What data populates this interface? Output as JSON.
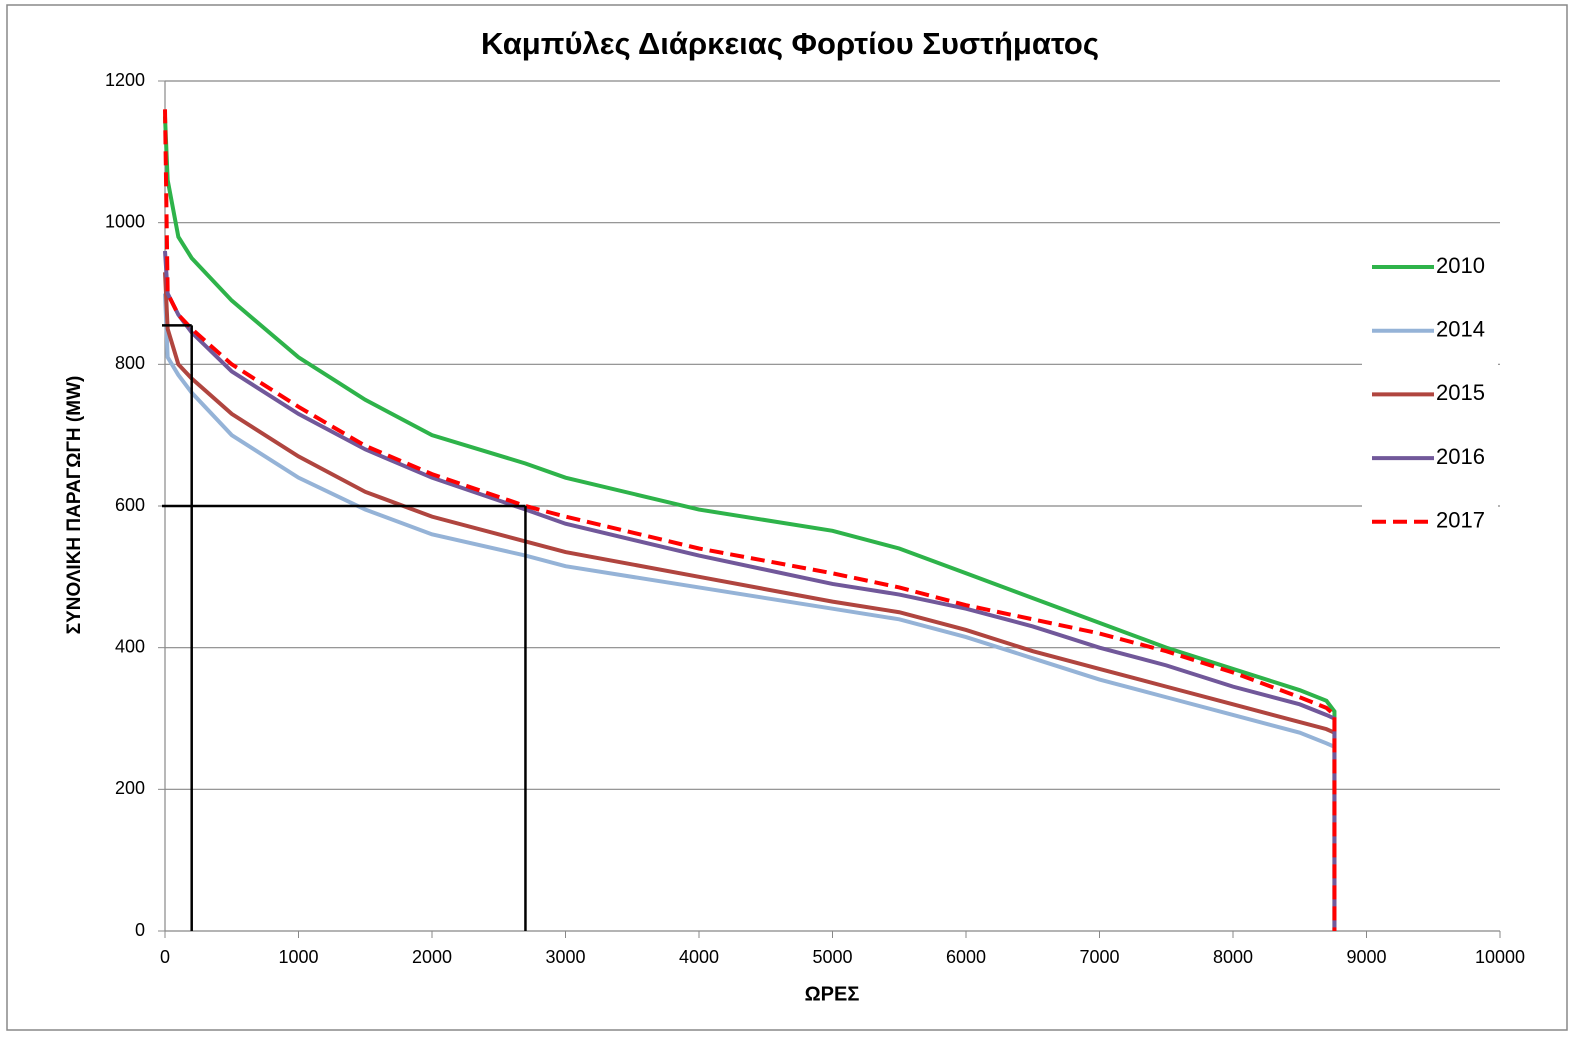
{
  "chart_data": {
    "type": "line",
    "title": "Καμπύλες Διάρκειας Φορτίου Συστήματος",
    "xlabel": "ΩΡΕΣ",
    "ylabel": "ΣΥΝΟΛΙΚΗ ΠΑΡΑΓΩΓΗ (MW)",
    "x": [
      0,
      20,
      100,
      200,
      500,
      1000,
      1500,
      2000,
      2700,
      3000,
      4000,
      5000,
      5500,
      6000,
      6500,
      7000,
      7500,
      8000,
      8500,
      8700,
      8760,
      8760
    ],
    "series": [
      {
        "name": "2010",
        "color": "#2eb34a",
        "style": "solid",
        "values": [
          1150,
          1060,
          980,
          950,
          890,
          810,
          750,
          700,
          660,
          640,
          595,
          565,
          540,
          505,
          470,
          435,
          400,
          370,
          340,
          325,
          310,
          0
        ]
      },
      {
        "name": "2014",
        "color": "#95b3d7",
        "style": "solid",
        "values": [
          900,
          810,
          785,
          760,
          700,
          640,
          595,
          560,
          530,
          515,
          485,
          455,
          440,
          415,
          385,
          355,
          330,
          305,
          280,
          265,
          260,
          0
        ]
      },
      {
        "name": "2015",
        "color": "#b0453f",
        "style": "solid",
        "values": [
          930,
          850,
          800,
          780,
          730,
          670,
          620,
          585,
          550,
          535,
          500,
          465,
          450,
          425,
          395,
          370,
          345,
          320,
          295,
          285,
          280,
          0
        ]
      },
      {
        "name": "2016",
        "color": "#71589a",
        "style": "solid",
        "values": [
          960,
          900,
          870,
          845,
          790,
          730,
          680,
          640,
          595,
          575,
          530,
          490,
          475,
          455,
          430,
          400,
          375,
          345,
          320,
          305,
          300,
          0
        ]
      },
      {
        "name": "2017",
        "color": "#ff0000",
        "style": "dashed",
        "values": [
          1160,
          900,
          870,
          850,
          800,
          740,
          685,
          645,
          600,
          585,
          540,
          505,
          485,
          460,
          440,
          420,
          395,
          365,
          330,
          315,
          305,
          0
        ]
      }
    ],
    "reference_lines": [
      {
        "x": 200,
        "y": 855
      },
      {
        "x": 2700,
        "y": 600
      }
    ],
    "reference_color": "#000000",
    "xlim": [
      0,
      10000
    ],
    "xticks": [
      0,
      1000,
      2000,
      3000,
      4000,
      5000,
      6000,
      7000,
      8000,
      9000,
      10000
    ],
    "ylim": [
      0,
      1200
    ],
    "yticks": [
      0,
      200,
      400,
      600,
      800,
      1000,
      1200
    ],
    "grid": true,
    "legend": "right"
  }
}
